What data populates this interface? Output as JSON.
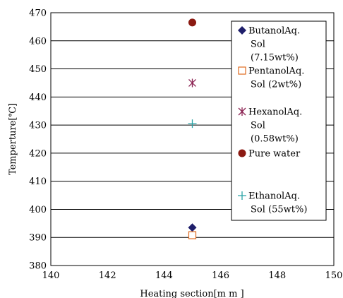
{
  "chart_data": {
    "type": "scatter",
    "title": "",
    "xlabel": "Heating section[m m ]",
    "ylabel": "Temperture[℃]",
    "xlim": [
      140,
      150
    ],
    "ylim": [
      380,
      470
    ],
    "x_ticks": [
      "140",
      "142",
      "144",
      "146",
      "148",
      "150"
    ],
    "y_ticks": [
      "380",
      "390",
      "400",
      "410",
      "420",
      "430",
      "440",
      "450",
      "460",
      "470"
    ],
    "grid": "horizontal",
    "legend_placement": "right",
    "series": [
      {
        "name_lines": [
          "ButanolAq.",
          "Sol",
          "(7.15wt%)"
        ],
        "marker": "diamond",
        "color": "#1f1f6b",
        "points": [
          {
            "x": 145,
            "y": 393.5
          }
        ]
      },
      {
        "name_lines": [
          "PentanolAq.",
          "Sol (2wt%)"
        ],
        "marker": "square-open",
        "color": "#e06a1e",
        "points": [
          {
            "x": 145,
            "y": 390.8
          }
        ]
      },
      {
        "name_lines": [
          "HexanolAq.",
          "Sol",
          "(0.58wt%)"
        ],
        "marker": "star",
        "color": "#8b2252",
        "points": [
          {
            "x": 145,
            "y": 445
          }
        ]
      },
      {
        "name_lines": [
          "Pure water"
        ],
        "marker": "circle",
        "color": "#8b1a12",
        "points": [
          {
            "x": 145,
            "y": 466.5
          }
        ]
      },
      {
        "name_lines": [
          "EthanolAq.",
          "Sol (55wt%)"
        ],
        "marker": "plus",
        "color": "#2aa3a6",
        "points": [
          {
            "x": 145,
            "y": 430.5
          }
        ]
      }
    ]
  }
}
